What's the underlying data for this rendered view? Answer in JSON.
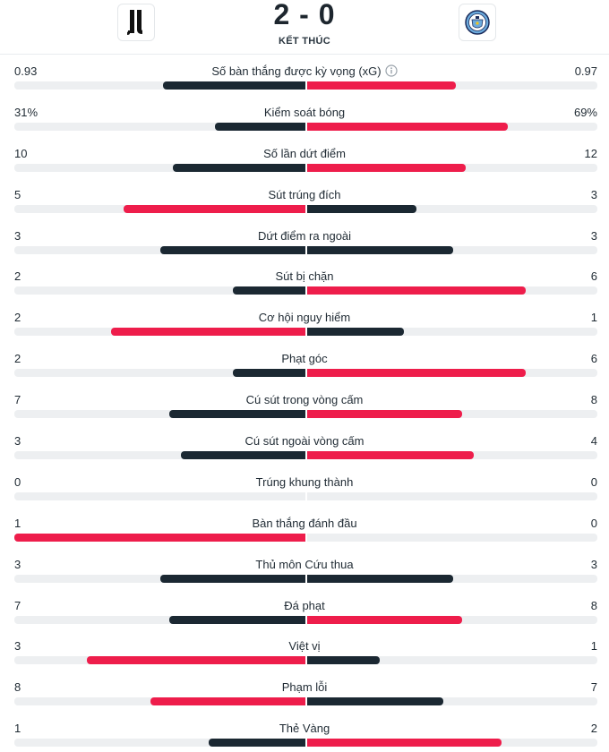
{
  "match": {
    "home_team": "Juventus",
    "away_team": "Manchester City",
    "score": "2 - 0",
    "status": "KẾT THÚC"
  },
  "colors": {
    "leader": "#ee1d4b",
    "trailer": "#1b2832",
    "track": "#edeff1"
  },
  "stats": [
    {
      "label": "Số bàn thắng được kỳ vọng (xG)",
      "home": "0.93",
      "away": "0.97",
      "home_num": 0.93,
      "away_num": 0.97,
      "info": true
    },
    {
      "label": "Kiểm soát bóng",
      "home": "31%",
      "away": "69%",
      "home_num": 31,
      "away_num": 69
    },
    {
      "label": "Số lần dứt điểm",
      "home": "10",
      "away": "12",
      "home_num": 10,
      "away_num": 12
    },
    {
      "label": "Sút trúng đích",
      "home": "5",
      "away": "3",
      "home_num": 5,
      "away_num": 3
    },
    {
      "label": "Dứt điểm ra ngoài",
      "home": "3",
      "away": "3",
      "home_num": 3,
      "away_num": 3
    },
    {
      "label": "Sút bị chặn",
      "home": "2",
      "away": "6",
      "home_num": 2,
      "away_num": 6
    },
    {
      "label": "Cơ hội nguy hiểm",
      "home": "2",
      "away": "1",
      "home_num": 2,
      "away_num": 1
    },
    {
      "label": "Phạt góc",
      "home": "2",
      "away": "6",
      "home_num": 2,
      "away_num": 6
    },
    {
      "label": "Cú sút trong vòng cấm",
      "home": "7",
      "away": "8",
      "home_num": 7,
      "away_num": 8
    },
    {
      "label": "Cú sút ngoài vòng cấm",
      "home": "3",
      "away": "4",
      "home_num": 3,
      "away_num": 4
    },
    {
      "label": "Trúng khung thành",
      "home": "0",
      "away": "0",
      "home_num": 0,
      "away_num": 0
    },
    {
      "label": "Bàn thắng đánh đầu",
      "home": "1",
      "away": "0",
      "home_num": 1,
      "away_num": 0
    },
    {
      "label": "Thủ môn Cứu thua",
      "home": "3",
      "away": "3",
      "home_num": 3,
      "away_num": 3
    },
    {
      "label": "Đá phạt",
      "home": "7",
      "away": "8",
      "home_num": 7,
      "away_num": 8
    },
    {
      "label": "Việt vị",
      "home": "3",
      "away": "1",
      "home_num": 3,
      "away_num": 1
    },
    {
      "label": "Phạm lỗi",
      "home": "8",
      "away": "7",
      "home_num": 8,
      "away_num": 7
    },
    {
      "label": "Thẻ Vàng",
      "home": "1",
      "away": "2",
      "home_num": 1,
      "away_num": 2
    }
  ]
}
